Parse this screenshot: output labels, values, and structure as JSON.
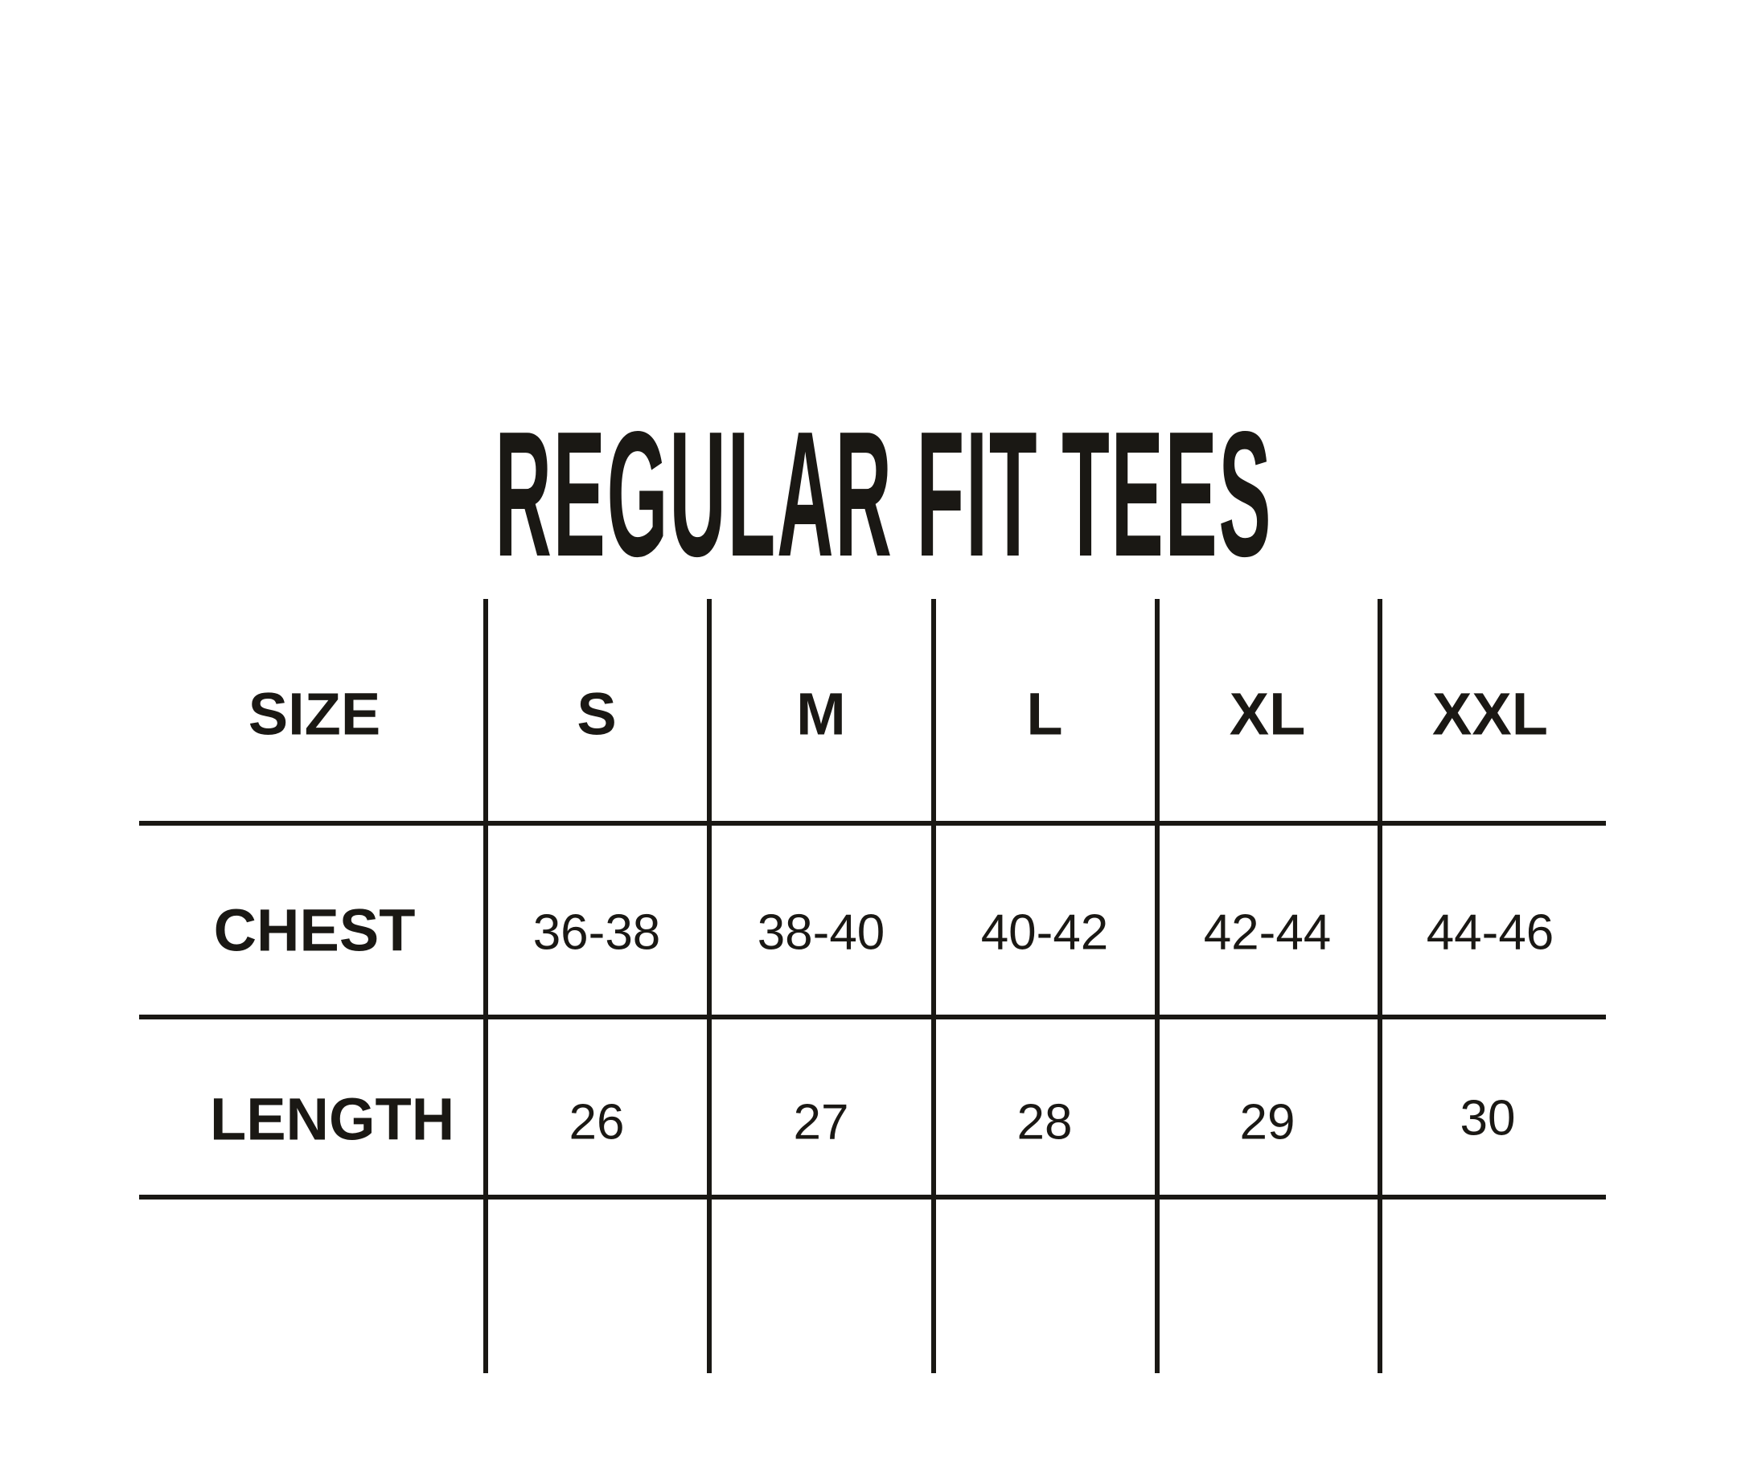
{
  "title": "REGULAR FIT TEES",
  "table": {
    "headers": [
      "SIZE",
      "S",
      "M",
      "L",
      "XL",
      "XXL"
    ],
    "rows": [
      {
        "label": "CHEST",
        "values": [
          "36-38",
          "38-40",
          "40-42",
          "42-44",
          "44-46"
        ]
      },
      {
        "label": "LENGTH",
        "values": [
          "26",
          "27",
          "28",
          "29",
          "30"
        ]
      }
    ]
  }
}
